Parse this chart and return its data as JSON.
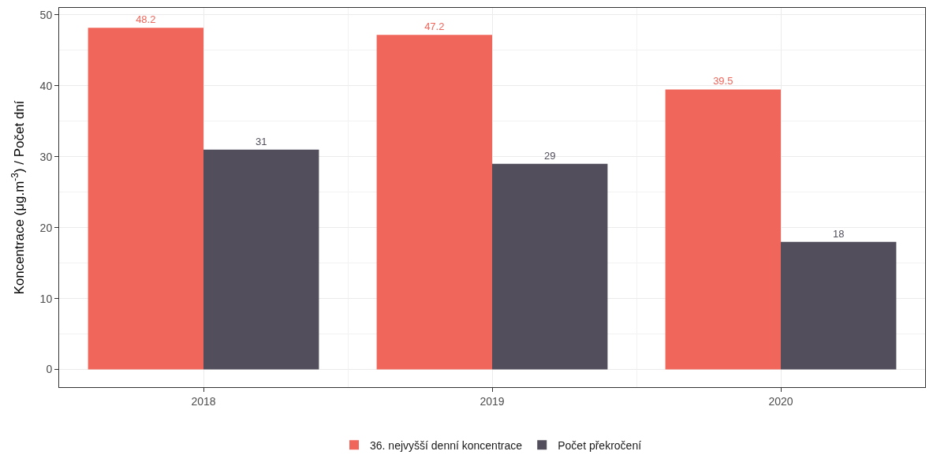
{
  "chart_data": {
    "type": "bar",
    "categories": [
      "2018",
      "2019",
      "2020"
    ],
    "ylabel": "Koncentrace (μg.m$^{-3}$) / Počet dní",
    "series": [
      {
        "name": "36. nejvyšší denní koncentrace",
        "color": "#f0665b",
        "values": [
          48.2,
          47.2,
          39.5
        ]
      },
      {
        "name": "Počet překročení",
        "color": "#524e5b",
        "values": [
          31,
          29,
          18
        ]
      }
    ],
    "ylim": [
      -2.5,
      51
    ],
    "yticks": [
      0,
      10,
      20,
      30,
      40,
      50
    ],
    "grid": true,
    "legend": "bottom",
    "data_labels": true
  }
}
